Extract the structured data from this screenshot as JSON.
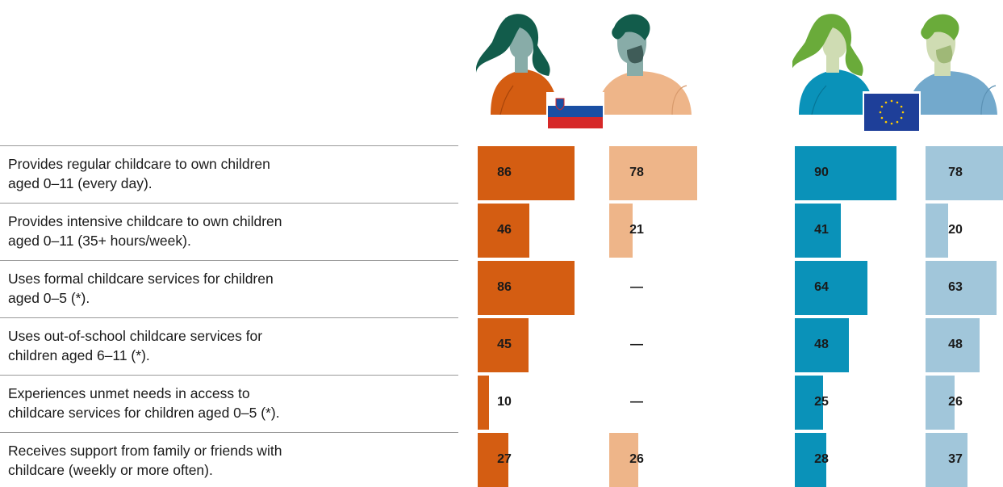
{
  "chart_data": {
    "type": "bar",
    "orientation": "horizontal",
    "xlim": [
      0,
      100
    ],
    "categories": [
      "Provides regular childcare to own children\naged 0–11 (every day).",
      "Provides intensive childcare to own children\naged 0–11 (35+ hours/week).",
      "Uses formal childcare services for children\naged 0–5 (*).",
      "Uses out-of-school childcare services for\nchildren aged 6–11 (*).",
      "Experiences unmet needs in access to\nchildcare services for children aged 0–5 (*).",
      "Receives support from family or friends with\nchildcare (weekly or more often)."
    ],
    "value_labels": [
      [
        "86",
        "78",
        "90",
        "78"
      ],
      [
        "46",
        "21",
        "41",
        "20"
      ],
      [
        "86",
        "—",
        "64",
        "63"
      ],
      [
        "45",
        "—",
        "48",
        "48"
      ],
      [
        "10",
        "—",
        "25",
        "26"
      ],
      [
        "27",
        "26",
        "28",
        "37"
      ]
    ],
    "series": [
      {
        "values": [
          86,
          46,
          86,
          45,
          10,
          27
        ],
        "color": "#d45d12"
      },
      {
        "values": [
          78,
          21,
          null,
          null,
          null,
          26
        ],
        "color": "#eeb589"
      },
      {
        "values": [
          90,
          41,
          64,
          48,
          25,
          28
        ],
        "color": "#0a92b9"
      },
      {
        "values": [
          78,
          20,
          63,
          48,
          26,
          37
        ],
        "color": "#a1c6da"
      }
    ],
    "groups": [
      {
        "icon": "slovenia-flag-icon"
      },
      {
        "icon": "eu-flag-icon"
      }
    ]
  }
}
